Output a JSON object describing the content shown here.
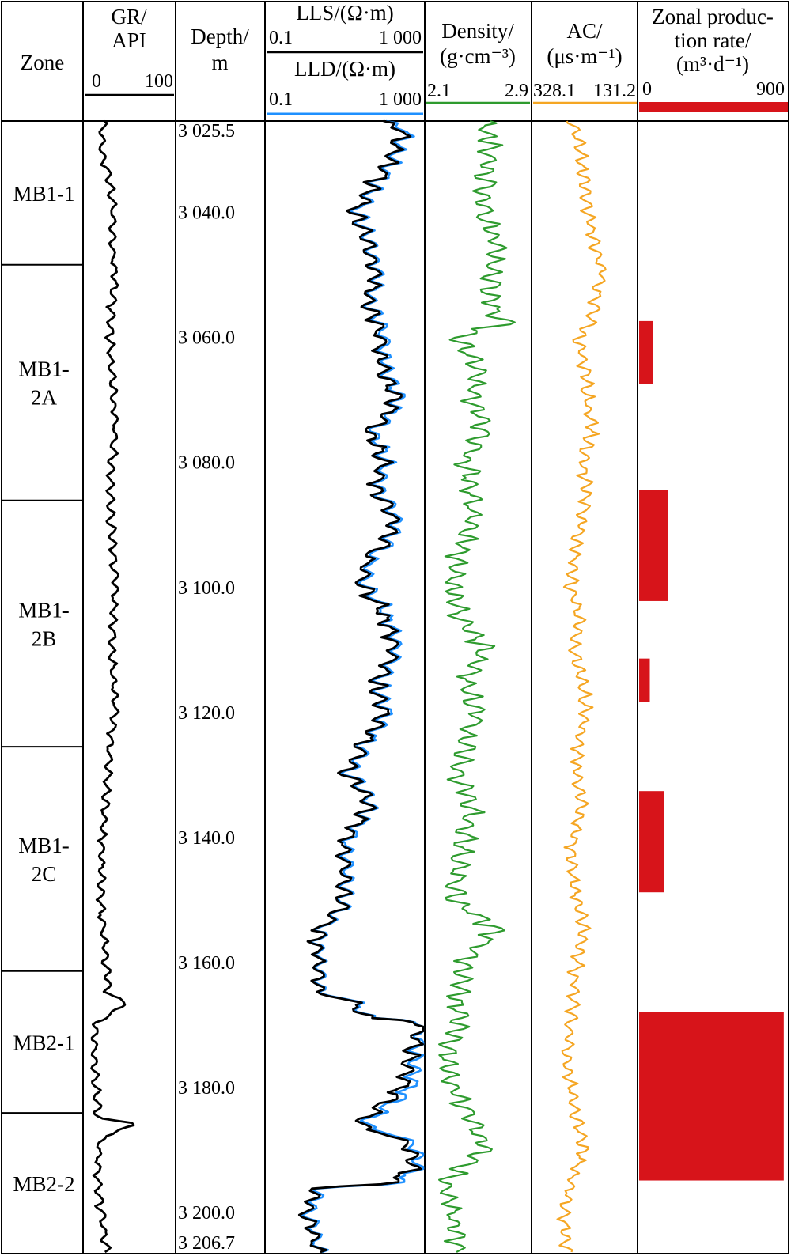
{
  "chart_data": {
    "type": "well_log",
    "depth_range": [
      3025.5,
      3206.7
    ],
    "headers": {
      "zone": "Zone",
      "gr": [
        "GR/",
        "API"
      ],
      "depth": [
        "Depth/",
        "m"
      ],
      "lls": "LLS/(Ω·m)",
      "lld": "LLD/(Ω·m)",
      "density": [
        "Density/",
        "(g·cm⁻³)"
      ],
      "ac": [
        "AC/",
        "(μs·m⁻¹)"
      ],
      "prod": [
        "Zonal produc-",
        "tion rate/",
        "(m³·d⁻¹)"
      ]
    },
    "scales": {
      "gr": [
        "0",
        "100"
      ],
      "lls": [
        "0.1",
        "1 000"
      ],
      "lld": [
        "0.1",
        "1 000"
      ],
      "density": [
        "2.1",
        "2.9"
      ],
      "ac": [
        "328.1",
        "131.2"
      ],
      "prod": [
        "0",
        "900"
      ]
    },
    "colors": {
      "gr": "#000000",
      "lls": "#000000",
      "lld": "#1e90ff",
      "density": "#2e9b2e",
      "ac": "#f5a623",
      "prod": "#d7141a"
    },
    "depth_ticks": [
      "3 025.5",
      "3 040.0",
      "3 060.0",
      "3 080.0",
      "3 100.0",
      "3 120.0",
      "3 140.0",
      "3 160.0",
      "3 180.0",
      "3 200.0",
      "3 206.7"
    ],
    "zones": [
      {
        "name": "MB1-1",
        "top": 3025.5,
        "bottom": 3048.5
      },
      {
        "name": "MB1-\n2A",
        "top": 3048.5,
        "bottom": 3086.2
      },
      {
        "name": "MB1-\n2B",
        "top": 3086.2,
        "bottom": 3125.6
      },
      {
        "name": "MB1-\n2C",
        "top": 3125.6,
        "bottom": 3161.5
      },
      {
        "name": "MB2-1",
        "top": 3161.5,
        "bottom": 3184.2
      },
      {
        "name": "MB2-2",
        "top": 3184.2,
        "bottom": 3206.7
      }
    ],
    "production": [
      {
        "top": 3057.5,
        "bottom": 3067.6,
        "rate": 85
      },
      {
        "top": 3084.5,
        "bottom": 3102.3,
        "rate": 175
      },
      {
        "top": 3111.5,
        "bottom": 3118.4,
        "rate": 65
      },
      {
        "top": 3132.7,
        "bottom": 3148.9,
        "rate": 150
      },
      {
        "top": 3168.0,
        "bottom": 3195.0,
        "rate": 880
      }
    ],
    "gr": {
      "depth": [
        3025.5,
        3030,
        3035,
        3040,
        3045,
        3050,
        3055,
        3060,
        3065,
        3070,
        3075,
        3080,
        3085,
        3090,
        3095,
        3100,
        3105,
        3110,
        3115,
        3120,
        3125,
        3130,
        3135,
        3140,
        3145,
        3150,
        3155,
        3160,
        3165,
        3167,
        3168,
        3170,
        3175,
        3180,
        3185,
        3186,
        3188,
        3190,
        3195,
        3200,
        3206.7
      ],
      "value": [
        20,
        18,
        28,
        32,
        30,
        34,
        30,
        28,
        30,
        32,
        34,
        30,
        28,
        30,
        32,
        34,
        32,
        30,
        32,
        34,
        28,
        26,
        22,
        20,
        18,
        18,
        20,
        24,
        26,
        48,
        30,
        12,
        10,
        12,
        14,
        60,
        20,
        16,
        14,
        18,
        24
      ]
    },
    "lls": {
      "depth": [
        3025.5,
        3027,
        3030,
        3035,
        3040,
        3045,
        3050,
        3055,
        3060,
        3065,
        3070,
        3075,
        3080,
        3085,
        3090,
        3095,
        3100,
        3105,
        3110,
        3115,
        3120,
        3125,
        3130,
        3135,
        3140,
        3145,
        3150,
        3155,
        3160,
        3165,
        3169,
        3170,
        3175,
        3180,
        3183,
        3185,
        3187,
        3190,
        3193,
        3196,
        3200,
        3206.7
      ],
      "value": [
        60,
        320,
        200,
        60,
        15,
        40,
        60,
        40,
        80,
        90,
        200,
        40,
        90,
        60,
        200,
        40,
        25,
        100,
        200,
        60,
        100,
        30,
        10,
        40,
        10,
        10,
        9,
        2,
        2,
        2,
        35,
        900,
        500,
        300,
        80,
        30,
        30,
        500,
        500,
        2,
        1,
        2
      ]
    },
    "lld": {
      "depth": [
        3025.5,
        3027,
        3030,
        3035,
        3040,
        3045,
        3050,
        3055,
        3060,
        3065,
        3070,
        3075,
        3080,
        3085,
        3090,
        3095,
        3100,
        3105,
        3110,
        3115,
        3120,
        3125,
        3130,
        3135,
        3140,
        3145,
        3150,
        3155,
        3160,
        3165,
        3169,
        3170,
        3175,
        3180,
        3183,
        3185,
        3187,
        3190,
        3193,
        3196,
        3200,
        3206.7
      ],
      "value": [
        70,
        400,
        240,
        70,
        18,
        45,
        70,
        45,
        100,
        110,
        240,
        50,
        110,
        70,
        240,
        50,
        30,
        120,
        240,
        70,
        120,
        35,
        12,
        45,
        12,
        12,
        10,
        2.2,
        2.2,
        2.2,
        40,
        1000,
        700,
        500,
        120,
        40,
        40,
        700,
        700,
        2.5,
        1.2,
        2.2
      ]
    },
    "density": {
      "depth": [
        3025.5,
        3030,
        3035,
        3040,
        3045,
        3050,
        3055,
        3058,
        3060,
        3065,
        3070,
        3075,
        3080,
        3085,
        3090,
        3095,
        3100,
        3105,
        3110,
        3115,
        3120,
        3125,
        3130,
        3135,
        3140,
        3145,
        3150,
        3155,
        3160,
        3165,
        3170,
        3175,
        3180,
        3185,
        3190,
        3195,
        3200,
        3206.7
      ],
      "value": [
        2.55,
        2.6,
        2.55,
        2.55,
        2.65,
        2.6,
        2.6,
        2.7,
        2.35,
        2.5,
        2.45,
        2.55,
        2.4,
        2.45,
        2.45,
        2.35,
        2.3,
        2.35,
        2.55,
        2.4,
        2.5,
        2.4,
        2.35,
        2.45,
        2.4,
        2.35,
        2.3,
        2.65,
        2.4,
        2.35,
        2.35,
        2.25,
        2.3,
        2.45,
        2.55,
        2.25,
        2.3,
        2.35
      ]
    },
    "ac": {
      "depth": [
        3025.5,
        3030,
        3035,
        3040,
        3045,
        3050,
        3055,
        3058,
        3060,
        3065,
        3070,
        3075,
        3080,
        3085,
        3090,
        3095,
        3100,
        3105,
        3110,
        3115,
        3120,
        3125,
        3130,
        3135,
        3140,
        3145,
        3150,
        3155,
        3160,
        3165,
        3170,
        3175,
        3180,
        3185,
        3190,
        3195,
        3200,
        3206.7
      ],
      "value": [
        252,
        240,
        232,
        222,
        210,
        195,
        212,
        218,
        243,
        228,
        225,
        215,
        232,
        225,
        235,
        248,
        255,
        240,
        250,
        235,
        225,
        240,
        245,
        235,
        250,
        255,
        245,
        230,
        245,
        250,
        255,
        265,
        255,
        245,
        230,
        255,
        268,
        264
      ]
    }
  }
}
